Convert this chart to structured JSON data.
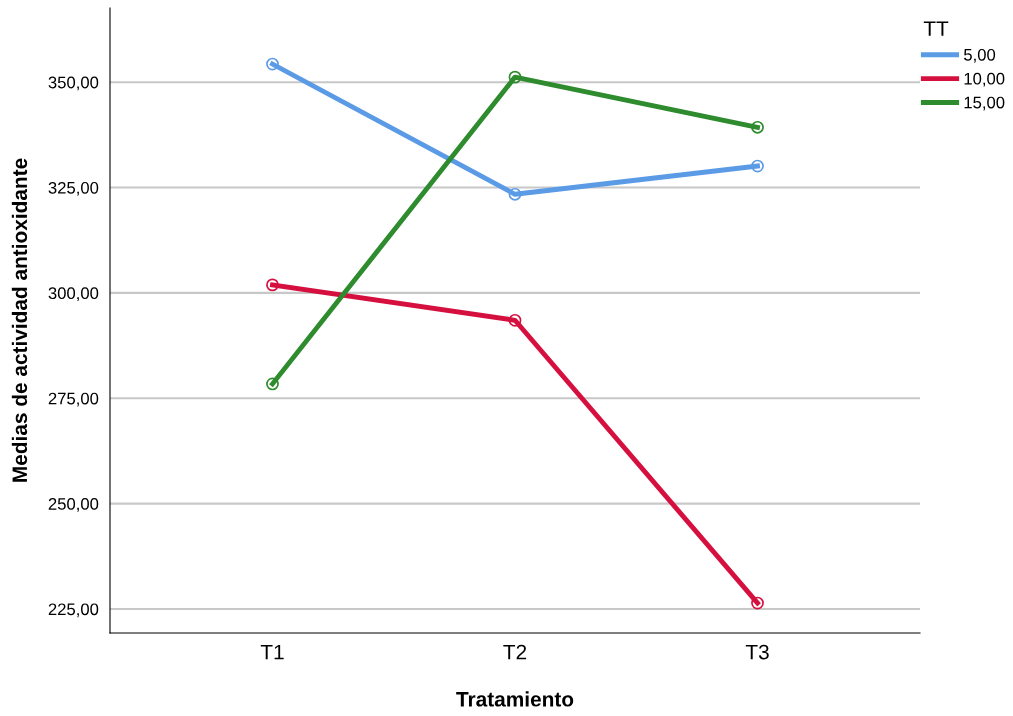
{
  "chart_data": {
    "type": "line",
    "xlabel": "Tratamiento",
    "ylabel": "Medias de actividad antioxidante",
    "legend_title": "TT",
    "categories": [
      "T1",
      "T2",
      "T3"
    ],
    "series": [
      {
        "name": "5,00",
        "color": "#5b9be6",
        "values": [
          354.3,
          323.4,
          330.1
        ]
      },
      {
        "name": "10,00",
        "color": "#d5103f",
        "values": [
          301.9,
          293.5,
          226.4
        ]
      },
      {
        "name": "15,00",
        "color": "#2e8b2e",
        "values": [
          278.4,
          351.2,
          339.3
        ]
      }
    ],
    "ylim": [
      219.3,
      367.6
    ],
    "yticks": [
      {
        "value": 225,
        "label": "225,00"
      },
      {
        "value": 250,
        "label": "250,00"
      },
      {
        "value": 275,
        "label": "275,00"
      },
      {
        "value": 300,
        "label": "300,00"
      },
      {
        "value": 325,
        "label": "325,00"
      },
      {
        "value": 350,
        "label": "350,00"
      }
    ],
    "grid": "y",
    "legend": "top right",
    "marker": "circle",
    "line_style": "solid"
  }
}
